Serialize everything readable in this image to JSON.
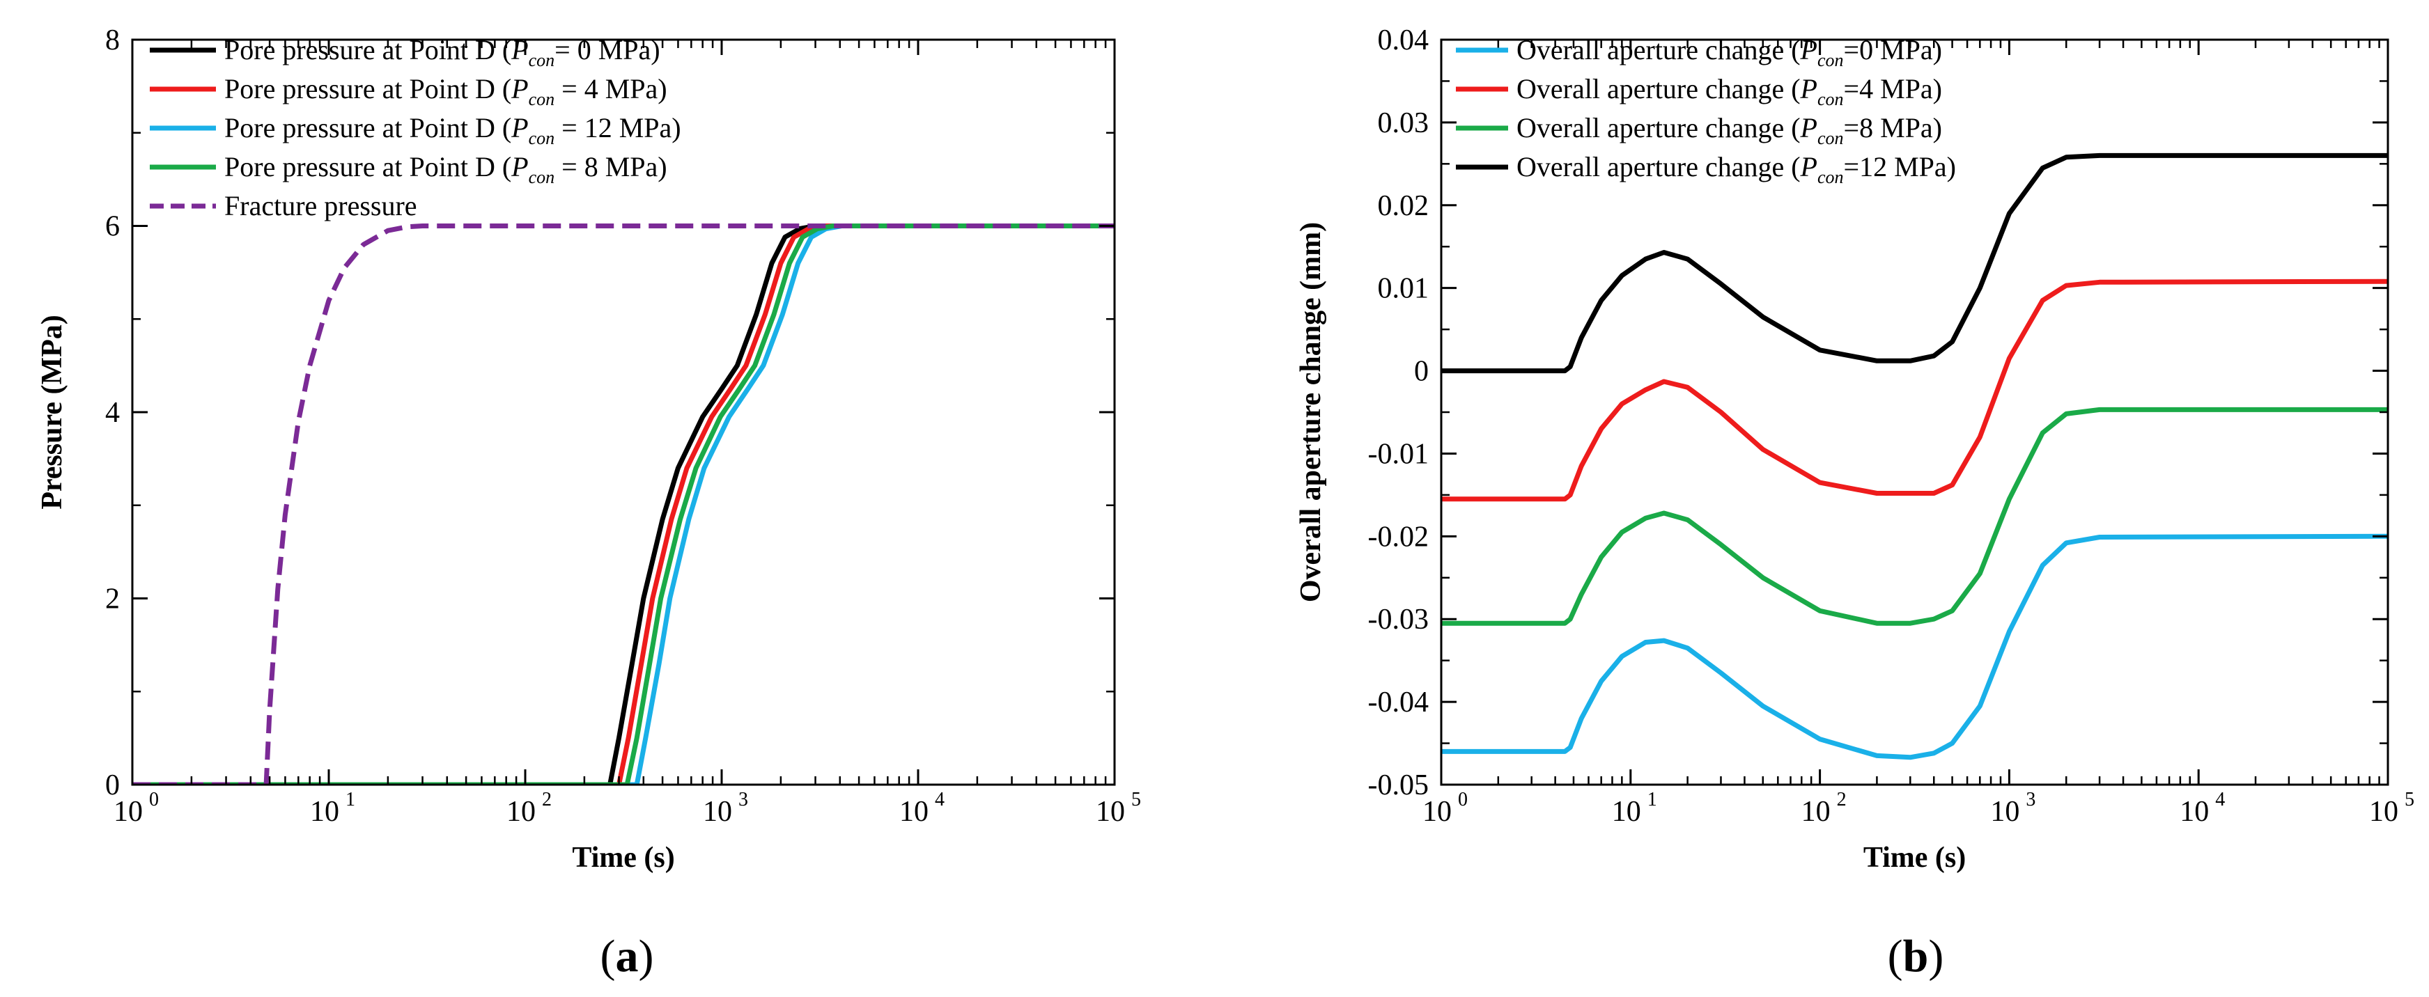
{
  "chart_data": [
    {
      "panel": "(a)",
      "panel_letter": "a",
      "type": "line",
      "xlabel": "Time (s)",
      "ylabel": "Pressure (MPa)",
      "xscale": "log",
      "xlim": [
        1,
        100000
      ],
      "ylim": [
        0,
        8
      ],
      "x_tick_labels": [
        {
          "value": 1,
          "base": "10",
          "exp": "0"
        },
        {
          "value": 10,
          "base": "10",
          "exp": "1"
        },
        {
          "value": 100,
          "base": "10",
          "exp": "2"
        },
        {
          "value": 1000,
          "base": "10",
          "exp": "3"
        },
        {
          "value": 10000,
          "base": "10",
          "exp": "4"
        },
        {
          "value": 100000,
          "base": "10",
          "exp": "5"
        }
      ],
      "y_ticks": [
        0,
        2,
        4,
        6,
        8
      ],
      "y_tick_labels": [
        "0",
        "2",
        "4",
        "6",
        "8"
      ],
      "legend_position": "top-left",
      "series": [
        {
          "pre": "Pore pressure at Point D (",
          "sym": "P",
          "sub": "con",
          "post": "= 0 MPa)",
          "color": "#000000",
          "dash": "solid",
          "x": [
            1,
            270,
            300,
            350,
            400,
            500,
            600,
            800,
            1000,
            1200,
            1500,
            1800,
            2100,
            2500,
            3000,
            4000,
            100000
          ],
          "y": [
            0,
            0,
            0.5,
            1.3,
            2.0,
            2.85,
            3.4,
            3.95,
            4.25,
            4.5,
            5.05,
            5.6,
            5.88,
            5.97,
            6,
            6,
            6
          ]
        },
        {
          "pre": "Pore pressure at Point D (",
          "sym": "P",
          "sub": "con",
          "post": " = 4 MPa)",
          "color": "#ee1c1c",
          "dash": "solid",
          "x": [
            1,
            300,
            335,
            390,
            445,
            555,
            665,
            890,
            1110,
            1330,
            1665,
            2000,
            2330,
            2775,
            3330,
            4440,
            100000
          ],
          "y": [
            0,
            0,
            0.5,
            1.3,
            2.0,
            2.85,
            3.4,
            3.95,
            4.25,
            4.5,
            5.05,
            5.6,
            5.88,
            5.97,
            6,
            6,
            6
          ]
        },
        {
          "pre": "Pore pressure at Point D (",
          "sym": "P",
          "sub": "con",
          "post": " = 12 MPa)",
          "color": "#1ab0e8",
          "dash": "solid",
          "x": [
            1,
            370,
            410,
            480,
            545,
            680,
            815,
            1090,
            1360,
            1630,
            2040,
            2450,
            2860,
            3400,
            4080,
            5440,
            100000
          ],
          "y": [
            0,
            0,
            0.5,
            1.3,
            2.0,
            2.85,
            3.4,
            3.95,
            4.25,
            4.5,
            5.05,
            5.6,
            5.88,
            5.97,
            6,
            6,
            6
          ]
        },
        {
          "pre": "Pore pressure at Point D (",
          "sym": "P",
          "sub": "con",
          "post": " = 8 MPa)",
          "color": "#1aaa48",
          "dash": "solid",
          "x": [
            1,
            330,
            370,
            430,
            490,
            615,
            740,
            985,
            1230,
            1475,
            1845,
            2215,
            2580,
            3075,
            3690,
            4920,
            100000
          ],
          "y": [
            0,
            0,
            0.5,
            1.3,
            2.0,
            2.85,
            3.4,
            3.95,
            4.25,
            4.5,
            5.05,
            5.6,
            5.88,
            5.97,
            6,
            6,
            6
          ]
        },
        {
          "pre": "Fracture pressure",
          "sym": "",
          "sub": "",
          "post": "",
          "color": "#7b2a96",
          "dash": "dashed",
          "x": [
            1,
            4.8,
            5,
            5.5,
            6,
            7,
            8,
            10,
            12,
            15,
            20,
            25,
            30,
            40,
            100000
          ],
          "y": [
            0,
            0,
            0.8,
            2.1,
            2.9,
            3.9,
            4.5,
            5.2,
            5.55,
            5.8,
            5.95,
            5.99,
            6,
            6,
            6
          ]
        }
      ]
    },
    {
      "panel": "(b)",
      "panel_letter": "b",
      "type": "line",
      "xlabel": "Time (s)",
      "ylabel": "Overall aperture change (mm)",
      "xscale": "log",
      "xlim": [
        1,
        100000
      ],
      "ylim": [
        -0.05,
        0.04
      ],
      "x_tick_labels": [
        {
          "value": 1,
          "base": "10",
          "exp": "0"
        },
        {
          "value": 10,
          "base": "10",
          "exp": "1"
        },
        {
          "value": 100,
          "base": "10",
          "exp": "2"
        },
        {
          "value": 1000,
          "base": "10",
          "exp": "3"
        },
        {
          "value": 10000,
          "base": "10",
          "exp": "4"
        },
        {
          "value": 100000,
          "base": "10",
          "exp": "5"
        }
      ],
      "y_ticks": [
        -0.05,
        -0.04,
        -0.03,
        -0.02,
        -0.01,
        0,
        0.01,
        0.02,
        0.03,
        0.04
      ],
      "y_tick_labels": [
        "-0.05",
        "-0.04",
        "-0.03",
        "-0.02",
        "-0.01",
        "0",
        "0.01",
        "0.02",
        "0.03",
        "0.04"
      ],
      "legend_position": "top-left",
      "series": [
        {
          "pre": "Overall aperture change (",
          "sym": "P",
          "sub": "con",
          "post": "=0 MPa)",
          "color": "#1ab0e8",
          "dash": "solid",
          "x": [
            1,
            4.5,
            4.8,
            5.5,
            7,
            9,
            12,
            15,
            20,
            30,
            50,
            100,
            200,
            300,
            400,
            500,
            700,
            1000,
            1500,
            2000,
            3000,
            100000
          ],
          "y": [
            -0.046,
            -0.046,
            -0.0455,
            -0.042,
            -0.0375,
            -0.0345,
            -0.0328,
            -0.0326,
            -0.0335,
            -0.0365,
            -0.0405,
            -0.0445,
            -0.0465,
            -0.0467,
            -0.0462,
            -0.045,
            -0.0405,
            -0.0315,
            -0.0235,
            -0.0208,
            -0.0201,
            -0.02
          ]
        },
        {
          "pre": "Overall aperture change (",
          "sym": "P",
          "sub": "con",
          "post": "=4 MPa)",
          "color": "#ee1c1c",
          "dash": "solid",
          "x": [
            1,
            4.5,
            4.8,
            5.5,
            7,
            9,
            12,
            15,
            20,
            30,
            50,
            100,
            200,
            300,
            400,
            500,
            700,
            1000,
            1500,
            2000,
            3000,
            100000
          ],
          "y": [
            -0.0155,
            -0.0155,
            -0.015,
            -0.0115,
            -0.007,
            -0.004,
            -0.0023,
            -0.0013,
            -0.002,
            -0.005,
            -0.0095,
            -0.0135,
            -0.0148,
            -0.0148,
            -0.0148,
            -0.0138,
            -0.008,
            0.0015,
            0.0085,
            0.0103,
            0.0107,
            0.0108
          ]
        },
        {
          "pre": "Overall aperture change (",
          "sym": "P",
          "sub": "con",
          "post": "=8 MPa)",
          "color": "#1aaa48",
          "dash": "solid",
          "x": [
            1,
            4.5,
            4.8,
            5.5,
            7,
            9,
            12,
            15,
            20,
            30,
            50,
            100,
            200,
            300,
            400,
            500,
            700,
            1000,
            1500,
            2000,
            3000,
            100000
          ],
          "y": [
            -0.0305,
            -0.0305,
            -0.03,
            -0.027,
            -0.0225,
            -0.0195,
            -0.0178,
            -0.0172,
            -0.018,
            -0.021,
            -0.025,
            -0.029,
            -0.0305,
            -0.0305,
            -0.03,
            -0.029,
            -0.0245,
            -0.0155,
            -0.0075,
            -0.0052,
            -0.0047,
            -0.0047
          ]
        },
        {
          "pre": "Overall aperture change (",
          "sym": "P",
          "sub": "con",
          "post": "=12 MPa)",
          "color": "#000000",
          "dash": "solid",
          "x": [
            1,
            4.5,
            4.8,
            5.5,
            7,
            9,
            12,
            15,
            20,
            30,
            50,
            100,
            200,
            300,
            400,
            500,
            700,
            1000,
            1500,
            2000,
            3000,
            100000
          ],
          "y": [
            0,
            0,
            0.0005,
            0.004,
            0.0085,
            0.0115,
            0.0135,
            0.0143,
            0.0135,
            0.0105,
            0.0065,
            0.0025,
            0.0012,
            0.0012,
            0.0018,
            0.0035,
            0.01,
            0.019,
            0.0245,
            0.0258,
            0.026,
            0.026
          ]
        }
      ]
    }
  ]
}
